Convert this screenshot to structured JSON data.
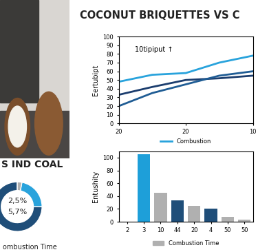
{
  "chart_data": [
    {
      "type": "line",
      "title": "COCONUT BRIQUETTES VS C",
      "annotation": "10tipiput ↑",
      "ylabel": "Eertubipt",
      "categories": [
        "20",
        null,
        "20",
        null,
        "10"
      ],
      "series": [
        {
          "name": "Combustion",
          "color": "#29a3dc",
          "values": [
            48,
            56,
            58,
            70,
            78
          ]
        },
        {
          "color": "#1b3d6e",
          "values": [
            33,
            42,
            50,
            52,
            55
          ]
        },
        {
          "color": "#1f5c94",
          "values": [
            20,
            35,
            45,
            55,
            60
          ]
        }
      ],
      "ylim": [
        0,
        100
      ],
      "yticks": [
        0,
        10,
        20,
        30,
        40,
        50,
        60,
        70,
        80,
        90,
        100
      ],
      "grid": false,
      "legend": "lower center"
    },
    {
      "type": "bar",
      "ylabel": "Entushity",
      "categories": [
        "2",
        "3",
        "10",
        "44",
        "20",
        "4",
        "50",
        "50"
      ],
      "series": [
        {
          "name": "Combustion Time",
          "color": "#b0b0b0",
          "values": [
            null,
            105,
            45,
            33,
            25,
            20,
            8,
            3
          ]
        }
      ],
      "colors": [
        null,
        "#1e9fd9",
        "#b0b0b0",
        "#1f4e79",
        "#b0b0b0",
        "#1f4e79",
        "#b0b0b0",
        "#b0b0b0"
      ],
      "ylim": [
        0,
        110
      ],
      "yticks": [
        0,
        20,
        40,
        60,
        80,
        100
      ],
      "grid": false,
      "legend": "lower center"
    },
    {
      "type": "pie",
      "title": "S IND COAL",
      "values": [
        75,
        22,
        3
      ],
      "colors": [
        "#1f4e79",
        "#29a3dc",
        "#b0b0b0"
      ],
      "annotations": [
        "2,5%",
        "5,7%"
      ],
      "xlabel": "ombustion Time"
    }
  ]
}
